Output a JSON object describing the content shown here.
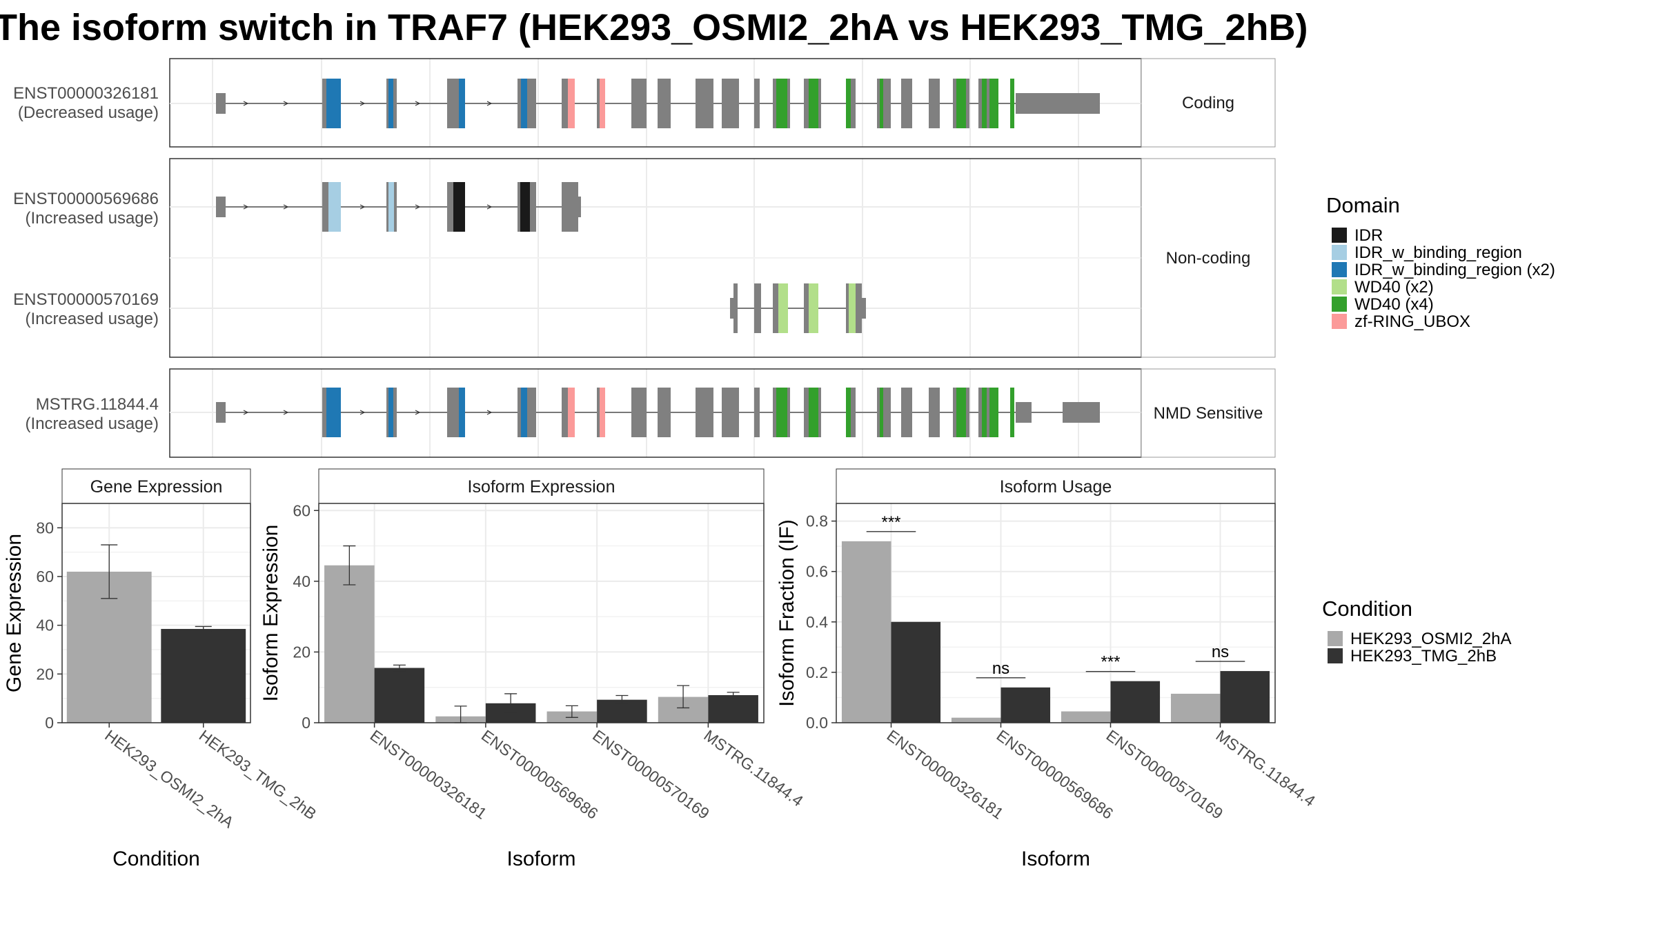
{
  "title": "The isoform switch in TRAF7 (HEK293_OSMI2_2hA vs HEK293_TMG_2hB)",
  "colors": {
    "IDR": "#1a1a1a",
    "IDR_w_binding_region": "#a6cee3",
    "IDR_w_binding_region (x2)": "#1f78b4",
    "WD40 (x2)": "#b2df8a",
    "WD40 (x4)": "#33a02c",
    "zf-RING_UBOX": "#fb9a99",
    "exon": "#808080",
    "condition_a": "#a9a9a9",
    "condition_b": "#333333"
  },
  "structure": {
    "panels": [
      {
        "label": "Coding",
        "tracks": [
          {
            "id": "ENST00000326181",
            "usage": "(Decreased usage)",
            "model": "coding"
          }
        ]
      },
      {
        "label": "Non-coding",
        "tracks": [
          {
            "id": "ENST00000569686",
            "usage": "(Increased usage)",
            "model": "nc1"
          },
          {
            "id": "ENST00000570169",
            "usage": "(Increased usage)",
            "model": "nc2"
          }
        ]
      },
      {
        "label": "NMD Sensitive",
        "tracks": [
          {
            "id": "MSTRG.11844.4",
            "usage": "(Increased usage)",
            "model": "nmd"
          }
        ]
      }
    ]
  },
  "legends": {
    "domain": {
      "title": "Domain",
      "items": [
        "IDR",
        "IDR_w_binding_region",
        "IDR_w_binding_region (x2)",
        "WD40 (x2)",
        "WD40 (x4)",
        "zf-RING_UBOX"
      ]
    },
    "condition": {
      "title": "Condition",
      "items": [
        "HEK293_OSMI2_2hA",
        "HEK293_TMG_2hB"
      ]
    }
  },
  "chart_data": [
    {
      "type": "bar",
      "title": "Gene Expression",
      "xlabel": "Condition",
      "ylabel": "Gene Expression",
      "ylim": [
        0,
        90
      ],
      "yticks": [
        0,
        20,
        40,
        60,
        80
      ],
      "categories": [
        "HEK293_OSMI2_2hA",
        "HEK293_TMG_2hB"
      ],
      "values": [
        62,
        38.5
      ],
      "errors": [
        [
          51,
          73
        ],
        [
          37.5,
          39.5
        ]
      ]
    },
    {
      "type": "bar",
      "title": "Isoform Expression",
      "xlabel": "Isoform",
      "ylabel": "Isoform Expression",
      "ylim": [
        0,
        62
      ],
      "yticks": [
        0,
        20,
        40,
        60
      ],
      "categories": [
        "ENST00000326181",
        "ENST00000569686",
        "ENST00000570169",
        "MSTRG.11844.4"
      ],
      "series": [
        {
          "name": "HEK293_OSMI2_2hA",
          "values": [
            44.5,
            1.8,
            3.2,
            7.3
          ],
          "errors": [
            [
              39,
              50
            ],
            [
              0,
              4.7
            ],
            [
              1.5,
              4.8
            ],
            [
              4.2,
              10.5
            ]
          ]
        },
        {
          "name": "HEK293_TMG_2hB",
          "values": [
            15.5,
            5.5,
            6.5,
            7.8
          ],
          "errors": [
            [
              14.7,
              16.3
            ],
            [
              3,
              8.2
            ],
            [
              5.3,
              7.7
            ],
            [
              7,
              8.6
            ]
          ]
        }
      ]
    },
    {
      "type": "bar",
      "title": "Isoform Usage",
      "xlabel": "Isoform",
      "ylabel": "Isoform Fraction (IF)",
      "ylim": [
        0,
        0.87
      ],
      "yticks": [
        0,
        0.2,
        0.4,
        0.6,
        0.8
      ],
      "ytick_labels": [
        "0.0",
        "0.2",
        "0.4",
        "0.6",
        "0.8"
      ],
      "categories": [
        "ENST00000326181",
        "ENST00000569686",
        "ENST00000570169",
        "MSTRG.11844.4"
      ],
      "series": [
        {
          "name": "HEK293_OSMI2_2hA",
          "values": [
            0.72,
            0.02,
            0.045,
            0.115
          ]
        },
        {
          "name": "HEK293_TMG_2hB",
          "values": [
            0.4,
            0.14,
            0.165,
            0.205
          ]
        }
      ],
      "significance": [
        "***",
        "ns",
        "***",
        "ns"
      ]
    }
  ]
}
